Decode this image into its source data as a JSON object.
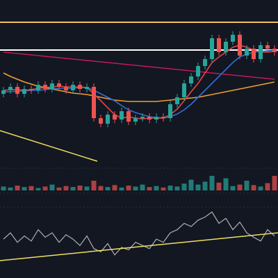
{
  "chart_data": [
    {
      "type": "candlestick",
      "ylim": [
        0,
        240
      ],
      "xlim": [
        -0.5,
        39.5
      ],
      "up_color": "#26a69a",
      "down_color": "#ef5350",
      "open": [
        105,
        110,
        115,
        105,
        112,
        110,
        118,
        112,
        120,
        115,
        110,
        118,
        112,
        115,
        70,
        62,
        75,
        68,
        80,
        65,
        70,
        72,
        68,
        72,
        70,
        90,
        100,
        120,
        130,
        145,
        155,
        185,
        165,
        180,
        190,
        160,
        170,
        155,
        175,
        170
      ],
      "high": [
        115,
        120,
        120,
        117,
        117,
        123,
        123,
        125,
        125,
        120,
        123,
        123,
        120,
        120,
        75,
        80,
        80,
        85,
        85,
        75,
        77,
        77,
        77,
        77,
        95,
        105,
        125,
        135,
        150,
        160,
        190,
        190,
        185,
        195,
        195,
        175,
        175,
        180,
        180,
        175
      ],
      "low": [
        100,
        105,
        100,
        100,
        105,
        105,
        107,
        107,
        110,
        105,
        105,
        107,
        107,
        65,
        57,
        57,
        63,
        63,
        60,
        60,
        65,
        63,
        63,
        65,
        65,
        85,
        95,
        115,
        125,
        140,
        150,
        160,
        160,
        175,
        155,
        155,
        150,
        150,
        165,
        160
      ],
      "close": [
        110,
        115,
        105,
        112,
        110,
        118,
        112,
        120,
        115,
        110,
        118,
        112,
        115,
        70,
        62,
        75,
        68,
        80,
        65,
        70,
        72,
        68,
        72,
        70,
        90,
        100,
        120,
        130,
        145,
        155,
        185,
        165,
        180,
        190,
        160,
        170,
        155,
        175,
        170,
        165
      ],
      "lines": [
        {
          "color": "#c2185b",
          "values": [
            165,
            164,
            163,
            162,
            161,
            160,
            159,
            158,
            157,
            156,
            155,
            154,
            153,
            152,
            151,
            150,
            149,
            148,
            147,
            146,
            145,
            144,
            143,
            142,
            141,
            140,
            139,
            138,
            137,
            136,
            135,
            134,
            133,
            132,
            131,
            130,
            129,
            128,
            127,
            126
          ]
        },
        {
          "color": "#f0a030",
          "values": [
            135,
            130,
            126,
            122,
            119,
            116,
            114,
            112,
            110,
            108,
            106,
            105,
            104,
            102,
            100,
            98,
            96,
            95,
            94,
            94,
            94,
            94,
            94,
            95,
            96,
            97,
            98,
            99,
            100,
            102,
            104,
            106,
            108,
            110,
            112,
            114,
            116,
            118,
            120,
            122
          ]
        },
        {
          "color": "#2f6fd6",
          "values": [
            108,
            108,
            109,
            109,
            110,
            110,
            111,
            112,
            113,
            113,
            113,
            114,
            114,
            110,
            105,
            100,
            95,
            88,
            82,
            78,
            75,
            72,
            71,
            70,
            72,
            76,
            82,
            90,
            100,
            110,
            120,
            130,
            140,
            150,
            158,
            162,
            165,
            166,
            167,
            168
          ]
        },
        {
          "color": "#e04848",
          "values": [
            110,
            111,
            111,
            110,
            111,
            113,
            114,
            115,
            116,
            115,
            115,
            115,
            114,
            105,
            95,
            85,
            75,
            70,
            72,
            70,
            69,
            70,
            70,
            70,
            75,
            83,
            95,
            108,
            120,
            135,
            150,
            158,
            165,
            172,
            175,
            172,
            168,
            165,
            165,
            166
          ]
        }
      ],
      "levels": [
        {
          "color": "#f5c060",
          "value": 208
        },
        {
          "color": "#ffffff",
          "value": 168
        }
      ],
      "trendlines": [
        {
          "color": "#f0e060",
          "x": [
            -0.5,
            13.5
          ],
          "values": [
            52,
            8
          ]
        }
      ]
    },
    {
      "type": "bar",
      "ylim": [
        0,
        40
      ],
      "xlim": [
        -0.5,
        39.5
      ],
      "up_color": "#26a69a",
      "down_color": "#ef5350",
      "values": [
        8,
        6,
        10,
        7,
        9,
        5,
        8,
        12,
        6,
        9,
        7,
        10,
        8,
        20,
        9,
        7,
        11,
        6,
        10,
        8,
        12,
        7,
        9,
        6,
        10,
        8,
        14,
        22,
        12,
        18,
        30,
        16,
        25,
        9,
        12,
        20,
        11,
        8,
        15,
        30
      ]
    },
    {
      "type": "line",
      "ylim": [
        0,
        110
      ],
      "xlim": [
        -0.5,
        39.5
      ],
      "color": "#b0b0b0",
      "values": [
        45,
        55,
        40,
        50,
        42,
        60,
        48,
        55,
        40,
        52,
        45,
        35,
        50,
        30,
        25,
        38,
        20,
        32,
        28,
        40,
        35,
        30,
        45,
        40,
        55,
        60,
        70,
        65,
        75,
        80,
        88,
        70,
        78,
        60,
        72,
        55,
        48,
        42,
        60,
        50
      ],
      "trendlines": [
        {
          "color": "#f0e060",
          "x": [
            -0.5,
            39.5
          ],
          "values": [
            11,
            55
          ]
        }
      ]
    }
  ]
}
